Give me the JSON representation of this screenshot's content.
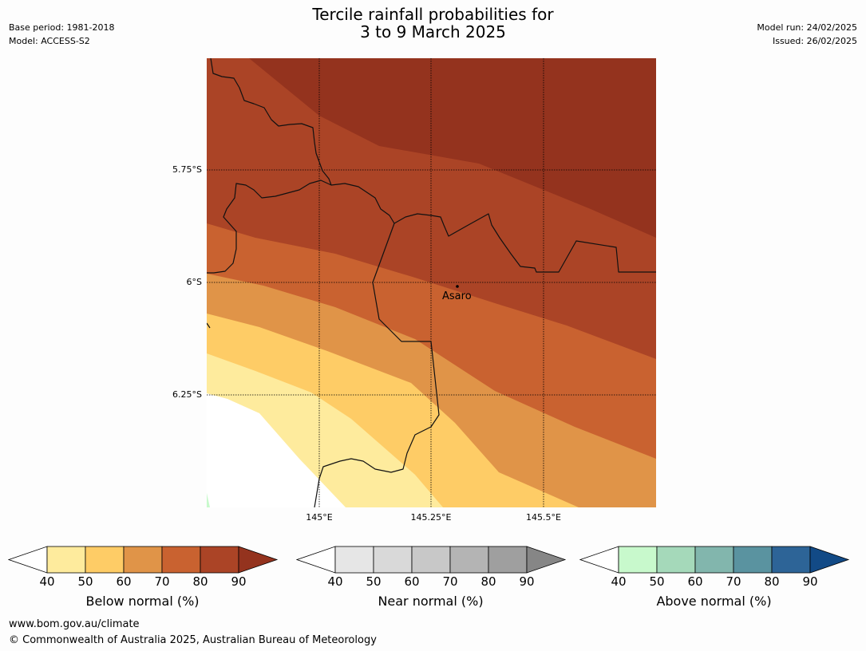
{
  "header": {
    "title_line1": "Tercile rainfall probabilities for",
    "title_line2": "3 to 9 March 2025",
    "base_period": "Base period: 1981-2018",
    "model": "Model: ACCESS-S2",
    "model_run": "Model run: 24/02/2025",
    "issued": "Issued: 26/02/2025"
  },
  "map": {
    "lat_labels": [
      "5.75°S",
      "6°S",
      "6.25°S"
    ],
    "lon_labels": [
      "145°E",
      "145.25°E",
      "145.5°E"
    ],
    "place_label": "Asaro",
    "colors": {
      "below_90": "#94331e",
      "below_80": "#ab4426",
      "below_70": "#c96230",
      "below_60": "#e09448",
      "below_50": "#fecc66",
      "below_40": "#feeb9d",
      "white": "#ffffff",
      "above_40": "#c8f9cc"
    }
  },
  "colorbars": [
    {
      "title": "Below normal (%)",
      "ticks": [
        "40",
        "50",
        "60",
        "70",
        "80",
        "90"
      ],
      "colors": [
        "#ffffff",
        "#feeb9d",
        "#fecc66",
        "#e09448",
        "#c96230",
        "#ab4426",
        "#94331e"
      ]
    },
    {
      "title": "Near normal (%)",
      "ticks": [
        "40",
        "50",
        "60",
        "70",
        "80",
        "90"
      ],
      "colors": [
        "#ffffff",
        "#e6e6e6",
        "#d9d9d9",
        "#c8c8c8",
        "#b4b4b4",
        "#9f9f9f",
        "#868686"
      ]
    },
    {
      "title": "Above normal (%)",
      "ticks": [
        "40",
        "50",
        "60",
        "70",
        "80",
        "90"
      ],
      "colors": [
        "#ffffff",
        "#c8f9cc",
        "#a5d9ba",
        "#82b6ad",
        "#5a93a0",
        "#2d6497",
        "#124a86"
      ]
    }
  ],
  "footer": {
    "url": "www.bom.gov.au/climate",
    "copyright": "© Commonwealth of Australia 2025, Australian Bureau of Meteorology"
  }
}
